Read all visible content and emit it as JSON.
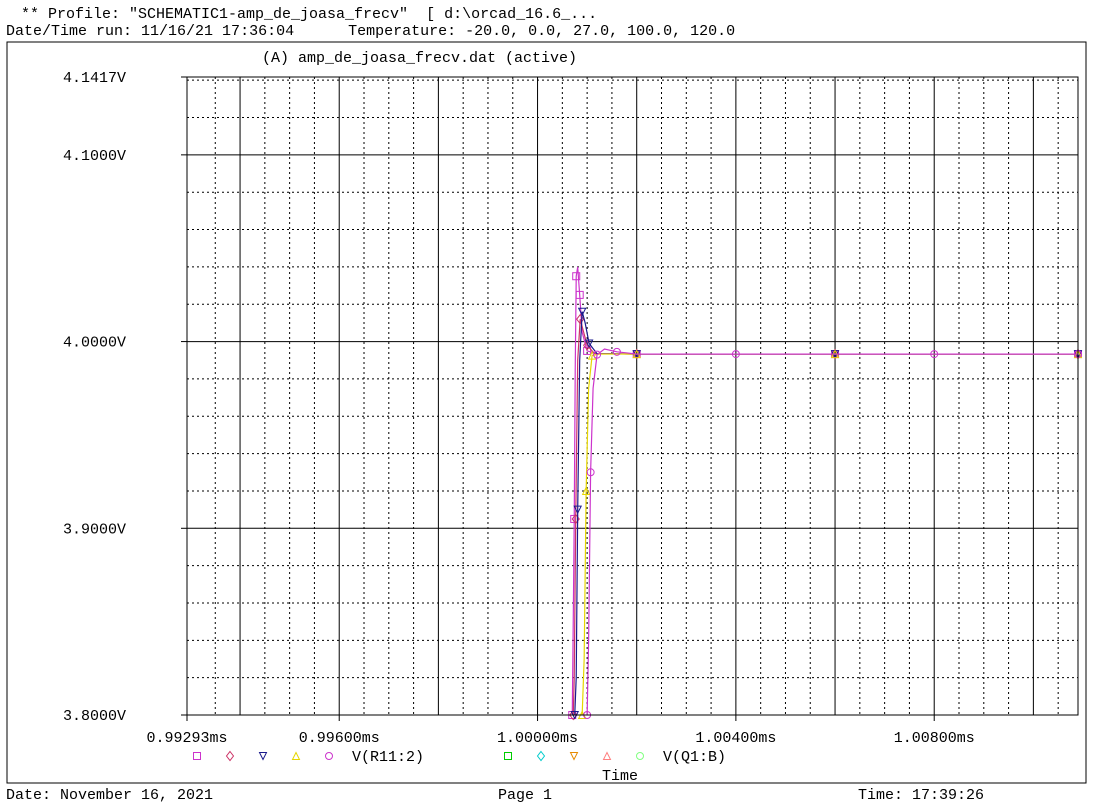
{
  "header": {
    "profile_line": "** Profile: \"SCHEMATIC1-amp_de_joasa_frecv\"  [ d:\\orcad_16.6_...",
    "date_label": "Date/Time run:",
    "date_value": "11/16/21 17:36:04",
    "temperature_line": "Temperature: -20.0, 0.0, 27.0, 100.0, 120.0"
  },
  "plot": {
    "section_title": "(A) amp_de_joasa_frecv.dat (active)",
    "xlabel": "Time"
  },
  "footer": {
    "date": "Date: November 16, 2021",
    "page": "Page 1",
    "time": "Time: 17:39:26"
  },
  "legend": {
    "groups": [
      {
        "label": "V(R11:2)",
        "symbols": [
          {
            "shape": "square",
            "color": "#cc33cc"
          },
          {
            "shape": "diamond",
            "color": "#cc3366"
          },
          {
            "shape": "triangle-down",
            "color": "#1a1a8c"
          },
          {
            "shape": "triangle-up",
            "color": "#e6d600"
          },
          {
            "shape": "circle",
            "color": "#cc33cc"
          }
        ]
      },
      {
        "label": "V(Q1:B)",
        "symbols": [
          {
            "shape": "square",
            "color": "#00cc00"
          },
          {
            "shape": "diamond",
            "color": "#00cccc"
          },
          {
            "shape": "triangle-down",
            "color": "#e68a00"
          },
          {
            "shape": "triangle-up",
            "color": "#ff8080"
          },
          {
            "shape": "circle",
            "color": "#80ff80"
          }
        ]
      }
    ]
  },
  "chart_data": {
    "type": "line",
    "title": "(A) amp_de_joasa_frecv.dat (active)",
    "xlabel": "Time",
    "ylabel": "",
    "xlim": [
      0.99293,
      1.0109
    ],
    "ylim": [
      3.8,
      4.1417
    ],
    "x_unit": "ms",
    "y_unit": "V",
    "grid": true,
    "x_ticks": [
      {
        "value": 0.99293,
        "label": "0.99293ms"
      },
      {
        "value": 0.996,
        "label": "0.99600ms"
      },
      {
        "value": 1.0,
        "label": "1.00000ms"
      },
      {
        "value": 1.004,
        "label": "1.00400ms"
      },
      {
        "value": 1.008,
        "label": "1.00800ms"
      }
    ],
    "y_ticks": [
      {
        "value": 3.8,
        "label": "3.8000V"
      },
      {
        "value": 3.9,
        "label": "3.9000V"
      },
      {
        "value": 4.0,
        "label": "4.0000V"
      },
      {
        "value": 4.1,
        "label": "4.1000V"
      },
      {
        "value": 4.1417,
        "label": "4.1417V"
      }
    ],
    "series": [
      {
        "color": "#cc33cc",
        "marker": "square",
        "x": [
          1.0007,
          1.00072,
          1.00074,
          1.00076,
          1.00078,
          1.00081,
          1.00085,
          1.0009,
          1.001,
          1.0012,
          1.002,
          1.004,
          1.006,
          1.008,
          1.0109
        ],
        "y": [
          3.8,
          3.85,
          3.905,
          3.985,
          4.035,
          4.04,
          4.025,
          4.005,
          3.995,
          3.9935,
          3.9933,
          3.9933,
          3.9933,
          3.9933,
          3.9933
        ]
      },
      {
        "color": "#cc3366",
        "marker": "diamond",
        "x": [
          1.00072,
          1.00074,
          1.00077,
          1.00081,
          1.00086,
          1.00092,
          1.001,
          1.00115,
          1.002,
          1.004,
          1.006,
          1.008,
          1.0109
        ],
        "y": [
          3.8,
          3.82,
          3.905,
          3.99,
          4.012,
          4.006,
          3.998,
          3.9935,
          3.9933,
          3.9933,
          3.9933,
          3.9933,
          3.9933
        ]
      },
      {
        "color": "#1a1a8c",
        "marker": "triangle-down",
        "x": [
          1.00075,
          1.00078,
          1.00081,
          1.00085,
          1.0009,
          1.00096,
          1.00104,
          1.0012,
          1.002,
          1.004,
          1.006,
          1.008,
          1.0109
        ],
        "y": [
          3.8,
          3.82,
          3.91,
          3.99,
          4.016,
          4.01,
          3.999,
          3.9935,
          3.9933,
          3.9933,
          3.9933,
          3.9933,
          3.9933
        ]
      },
      {
        "color": "#e6d600",
        "marker": "triangle-up",
        "x": [
          1.0009,
          1.00094,
          1.00098,
          1.00103,
          1.0011,
          1.00125,
          1.002,
          1.004,
          1.006,
          1.008,
          1.0109
        ],
        "y": [
          3.8,
          3.83,
          3.92,
          3.975,
          3.9925,
          3.9933,
          3.9933,
          3.9933,
          3.9933,
          3.9933,
          3.9933
        ]
      },
      {
        "color": "#cc33cc",
        "marker": "circle",
        "x": [
          1.001,
          1.00103,
          1.00107,
          1.00112,
          1.0012,
          1.00135,
          1.0016,
          1.002,
          1.004,
          1.006,
          1.008,
          1.0109
        ],
        "y": [
          3.8,
          3.84,
          3.93,
          3.975,
          3.993,
          3.996,
          3.9945,
          3.9933,
          3.9933,
          3.9933,
          3.9933,
          3.9933
        ]
      }
    ]
  }
}
